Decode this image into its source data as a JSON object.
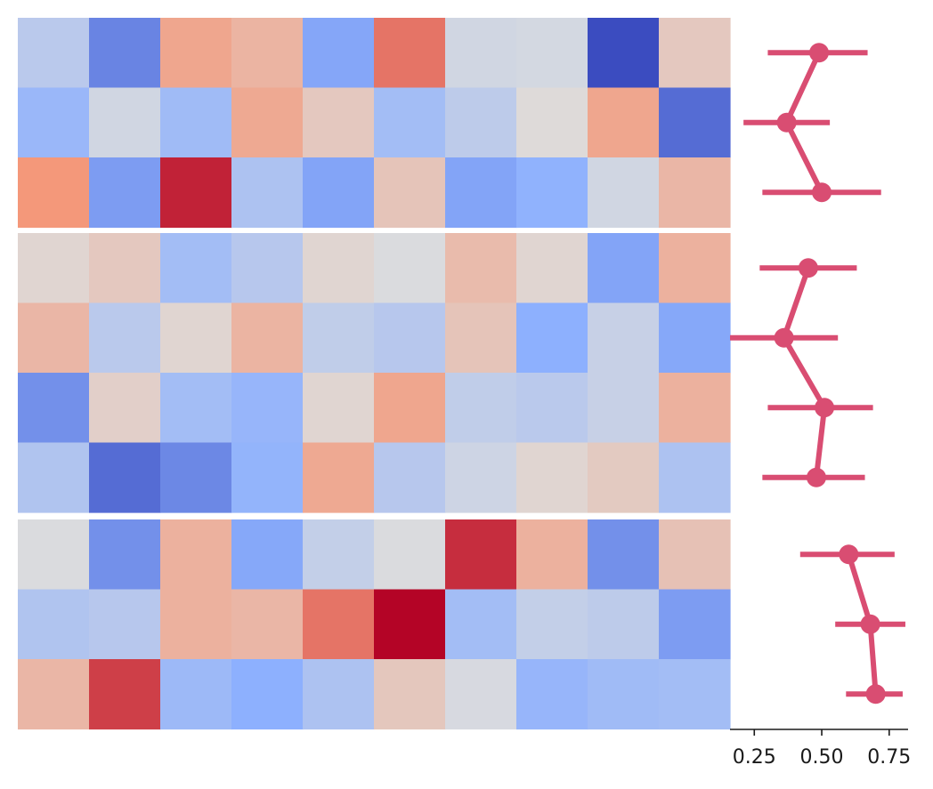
{
  "chart_data": {
    "type": "heatmap",
    "heatmap": {
      "groups": [
        {
          "rows": [
            [
              -0.22,
              -0.72,
              0.4,
              0.3,
              -0.55,
              0.62,
              -0.08,
              -0.06,
              -1.0,
              0.15
            ],
            [
              -0.42,
              -0.08,
              -0.38,
              0.38,
              0.15,
              -0.36,
              -0.2,
              0.02,
              0.4,
              -0.84
            ],
            [
              0.5,
              -0.6,
              0.9,
              -0.3,
              -0.56,
              0.18,
              -0.56,
              -0.48,
              -0.08,
              0.28
            ]
          ]
        },
        {
          "rows": [
            [
              0.06,
              0.15,
              -0.36,
              -0.24,
              0.06,
              -0.02,
              0.25,
              0.06,
              -0.56,
              0.32
            ],
            [
              0.28,
              -0.22,
              0.06,
              0.3,
              -0.18,
              -0.24,
              0.18,
              -0.5,
              -0.14,
              -0.54
            ],
            [
              -0.66,
              0.1,
              -0.36,
              -0.44,
              0.06,
              0.4,
              -0.18,
              -0.22,
              -0.14,
              0.32
            ],
            [
              -0.28,
              -0.84,
              -0.7,
              -0.46,
              0.38,
              -0.24,
              -0.1,
              0.06,
              0.14,
              -0.3
            ]
          ]
        },
        {
          "rows": [
            [
              -0.02,
              -0.66,
              0.32,
              -0.54,
              -0.16,
              -0.02,
              0.86,
              0.32,
              -0.66,
              0.2
            ],
            [
              -0.28,
              -0.24,
              0.32,
              0.28,
              0.62,
              1.0,
              -0.36,
              -0.16,
              -0.2,
              -0.6
            ],
            [
              0.28,
              0.8,
              -0.4,
              -0.5,
              -0.3,
              0.16,
              -0.04,
              -0.44,
              -0.38,
              -0.36
            ]
          ]
        }
      ]
    },
    "pointplot": {
      "color": "#d94d72",
      "groups": [
        {
          "points": [
            {
              "mean": 0.49,
              "low": 0.3,
              "high": 0.67
            },
            {
              "mean": 0.37,
              "low": 0.21,
              "high": 0.53
            },
            {
              "mean": 0.5,
              "low": 0.28,
              "high": 0.72
            }
          ]
        },
        {
          "points": [
            {
              "mean": 0.45,
              "low": 0.27,
              "high": 0.63
            },
            {
              "mean": 0.36,
              "low": 0.16,
              "high": 0.56
            },
            {
              "mean": 0.51,
              "low": 0.3,
              "high": 0.69
            },
            {
              "mean": 0.48,
              "low": 0.28,
              "high": 0.66
            }
          ]
        },
        {
          "points": [
            {
              "mean": 0.6,
              "low": 0.42,
              "high": 0.77
            },
            {
              "mean": 0.68,
              "low": 0.55,
              "high": 0.81
            },
            {
              "mean": 0.7,
              "low": 0.59,
              "high": 0.8
            }
          ]
        }
      ],
      "xlim": [
        0.16,
        0.82
      ],
      "xticks": [
        0.25,
        0.5,
        0.75
      ],
      "xtick_labels": [
        "0.25",
        "0.50",
        "0.75"
      ],
      "xlabel": "",
      "ylabel": ""
    },
    "title": "",
    "colormap": "coolwarm",
    "legend": "none"
  }
}
